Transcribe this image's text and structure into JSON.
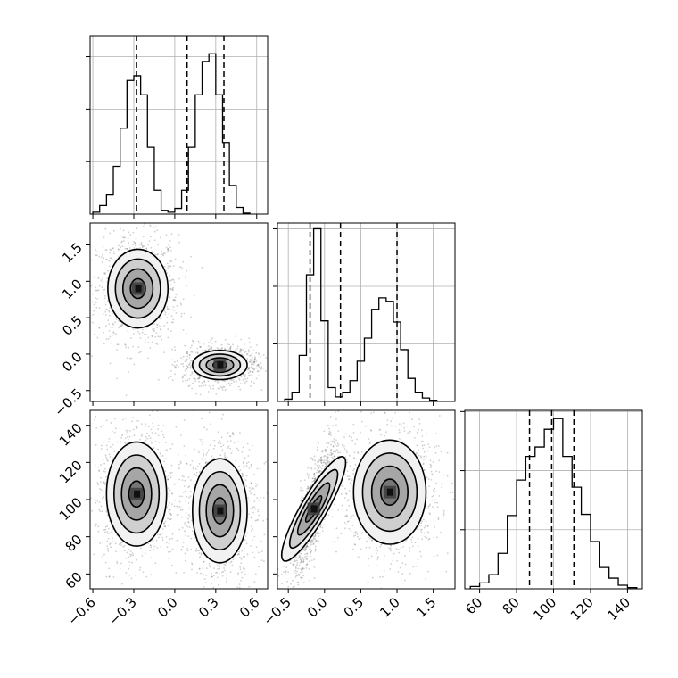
{
  "chart_data": [
    {
      "type": "histogram",
      "panel": "p1-marginal",
      "xlim": [
        -0.62,
        0.68
      ],
      "ylim": [
        0,
        0.187
      ],
      "bins": [
        [
          -0.6,
          -0.55,
          0.002
        ],
        [
          -0.55,
          -0.5,
          0.009
        ],
        [
          -0.5,
          -0.45,
          0.02
        ],
        [
          -0.45,
          -0.4,
          0.05
        ],
        [
          -0.4,
          -0.35,
          0.09
        ],
        [
          -0.35,
          -0.3,
          0.14
        ],
        [
          -0.3,
          -0.25,
          0.145
        ],
        [
          -0.25,
          -0.2,
          0.125
        ],
        [
          -0.2,
          -0.15,
          0.07
        ],
        [
          -0.15,
          -0.1,
          0.025
        ],
        [
          -0.1,
          -0.05,
          0.004
        ],
        [
          -0.05,
          0.0,
          0.002
        ],
        [
          0.0,
          0.05,
          0.006
        ],
        [
          0.05,
          0.1,
          0.025
        ],
        [
          0.1,
          0.15,
          0.07
        ],
        [
          0.15,
          0.2,
          0.125
        ],
        [
          0.2,
          0.25,
          0.16
        ],
        [
          0.25,
          0.3,
          0.168
        ],
        [
          0.3,
          0.35,
          0.125
        ],
        [
          0.35,
          0.4,
          0.075
        ],
        [
          0.4,
          0.45,
          0.03
        ],
        [
          0.45,
          0.5,
          0.007
        ],
        [
          0.5,
          0.55,
          0.001
        ]
      ],
      "quantiles": [
        -0.28,
        0.09,
        0.36
      ],
      "grid": true
    },
    {
      "type": "histogram",
      "panel": "p2-marginal",
      "xlim": [
        -0.65,
        1.8
      ],
      "ylim": [
        0,
        0.155
      ],
      "bins": [
        [
          -0.55,
          -0.45,
          0.002
        ],
        [
          -0.45,
          -0.35,
          0.008
        ],
        [
          -0.35,
          -0.25,
          0.04
        ],
        [
          -0.25,
          -0.15,
          0.11
        ],
        [
          -0.15,
          -0.05,
          0.15
        ],
        [
          -0.05,
          0.05,
          0.07
        ],
        [
          0.05,
          0.15,
          0.012
        ],
        [
          0.15,
          0.25,
          0.004
        ],
        [
          0.25,
          0.35,
          0.008
        ],
        [
          0.35,
          0.45,
          0.018
        ],
        [
          0.45,
          0.55,
          0.035
        ],
        [
          0.55,
          0.65,
          0.055
        ],
        [
          0.65,
          0.75,
          0.08
        ],
        [
          0.75,
          0.85,
          0.09
        ],
        [
          0.85,
          0.95,
          0.087
        ],
        [
          0.95,
          1.05,
          0.069
        ],
        [
          1.05,
          1.15,
          0.045
        ],
        [
          1.15,
          1.25,
          0.02
        ],
        [
          1.25,
          1.35,
          0.008
        ],
        [
          1.35,
          1.45,
          0.003
        ],
        [
          1.45,
          1.55,
          0.001
        ]
      ],
      "quantiles": [
        -0.2,
        0.22,
        1.0
      ],
      "grid": true
    },
    {
      "type": "histogram",
      "panel": "p3-marginal",
      "xlim": [
        52,
        148
      ],
      "ylim": [
        0,
        0.151
      ],
      "bins": [
        [
          55,
          60,
          0.002
        ],
        [
          60,
          65,
          0.005
        ],
        [
          65,
          70,
          0.012
        ],
        [
          70,
          75,
          0.03
        ],
        [
          75,
          80,
          0.062
        ],
        [
          80,
          85,
          0.092
        ],
        [
          85,
          90,
          0.112
        ],
        [
          90,
          95,
          0.12
        ],
        [
          95,
          100,
          0.135
        ],
        [
          100,
          105,
          0.144
        ],
        [
          105,
          110,
          0.112
        ],
        [
          110,
          115,
          0.086
        ],
        [
          115,
          120,
          0.063
        ],
        [
          120,
          125,
          0.04
        ],
        [
          125,
          130,
          0.018
        ],
        [
          130,
          135,
          0.009
        ],
        [
          135,
          140,
          0.003
        ],
        [
          140,
          145,
          0.001
        ]
      ],
      "quantiles": [
        87,
        99,
        111
      ],
      "grid": true
    },
    {
      "type": "contour-scatter",
      "panel": "p1-vs-p2",
      "xlim": [
        -0.62,
        0.68
      ],
      "ylim": [
        -0.65,
        1.8
      ],
      "modes": [
        {
          "cx": -0.27,
          "cy": 0.9,
          "sx": 0.11,
          "sy": 0.27,
          "rho": 0
        },
        {
          "cx": 0.33,
          "cy": -0.15,
          "sx": 0.1,
          "sy": 0.1,
          "rho": 0
        }
      ]
    },
    {
      "type": "contour-scatter",
      "panel": "p1-vs-p3",
      "xlim": [
        -0.62,
        0.68
      ],
      "ylim": [
        52,
        148
      ],
      "modes": [
        {
          "cx": -0.28,
          "cy": 103,
          "sx": 0.11,
          "sy": 14,
          "rho": 0
        },
        {
          "cx": 0.33,
          "cy": 94,
          "sx": 0.1,
          "sy": 14,
          "rho": 0
        }
      ]
    },
    {
      "type": "contour-scatter",
      "panel": "p2-vs-p3",
      "xlim": [
        -0.65,
        1.8
      ],
      "ylim": [
        52,
        148
      ],
      "modes": [
        {
          "cx": -0.15,
          "cy": 95,
          "sx": 0.12,
          "sy": 14,
          "rho": 0.8
        },
        {
          "cx": 0.9,
          "cy": 104,
          "sx": 0.25,
          "sy": 14,
          "rho": 0
        }
      ]
    }
  ],
  "axes": {
    "p1": {
      "ticks": [
        -0.6,
        -0.3,
        0.0,
        0.3,
        0.6
      ],
      "labels": [
        "−0.6",
        "−0.3",
        "0.0",
        "0.3",
        "0.6"
      ]
    },
    "p2": {
      "ticks": [
        -0.5,
        0.0,
        0.5,
        1.0,
        1.5
      ],
      "labels": [
        "−0.5",
        "0.0",
        "0.5",
        "1.0",
        "1.5"
      ]
    },
    "p3": {
      "ticks": [
        60,
        80,
        100,
        120,
        140
      ],
      "labels": [
        "60",
        "80",
        "100",
        "120",
        "140"
      ]
    }
  },
  "colors": {
    "line": "#000000",
    "grid": "#b0b0b0",
    "scatter": "#555555",
    "density": [
      "#f2f2f2",
      "#cfcfcf",
      "#a6a6a6",
      "#777777",
      "#3c3c3c",
      "#111111"
    ]
  }
}
